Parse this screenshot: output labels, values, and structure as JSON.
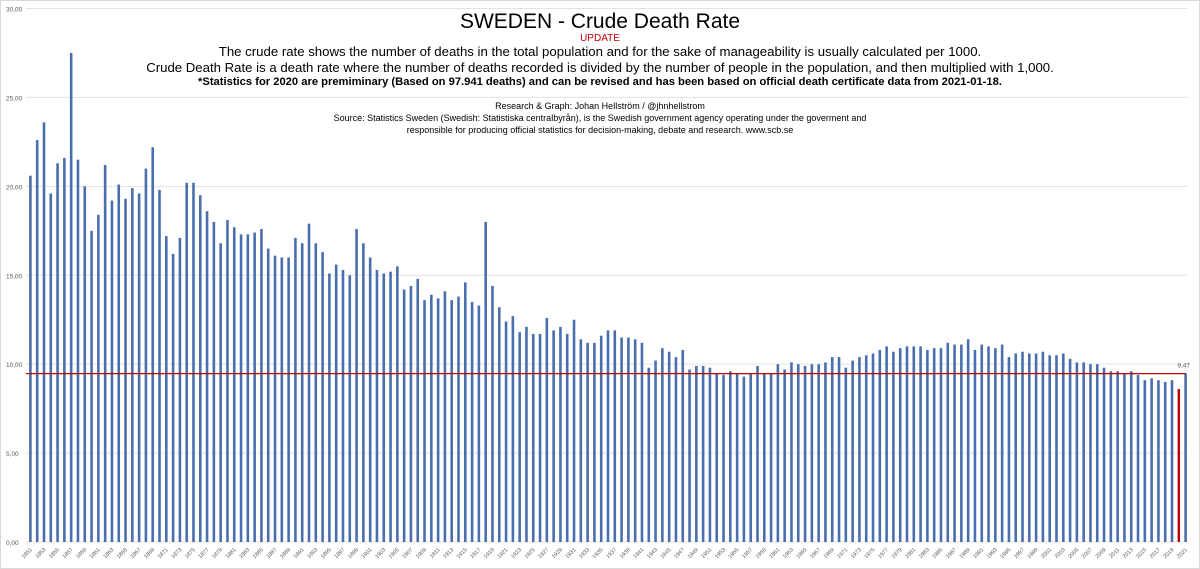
{
  "chart_data": {
    "type": "bar",
    "title": "SWEDEN - Crude Death Rate",
    "subtitle": "UPDATE",
    "description": [
      "The crude rate shows the number of deaths in the total population and for the sake of manageability is usually calculated per 1000.",
      "Crude Death Rate is a death rate where the number of deaths recorded is divided by the number of people in the population, and then multiplied with 1,000.",
      "*Statistics for 2020 are premiminary (Based on 97.941 deaths) and can be revised and has been based on official death certificate data from 2021-01-18."
    ],
    "credit": "Research & Graph: Johan Hellström / @jhnhellstrom",
    "source": [
      "Source: Statistics Sweden (Swedish: Statistiska centralbyrån), is the Swedish government agency operating under the goverment and",
      "responsible for producing official statistics for decision-making, debate and research. www.scb.se"
    ],
    "xlabel": "",
    "ylabel": "",
    "ylim": [
      0,
      30
    ],
    "yticks": [
      "0,00",
      "5,00",
      "10,00",
      "15,00",
      "20,00",
      "25,00",
      "30,00"
    ],
    "grid": true,
    "legend": "none",
    "x_start": 1851,
    "x_label_step": 2,
    "reference_line": {
      "value": 9.47,
      "label": "9,47",
      "color": "#c00000"
    },
    "highlight": {
      "year": 2020,
      "value": 9.47,
      "color": "#c00000"
    },
    "bar_color": "#4a6fae",
    "values": [
      20.6,
      22.6,
      23.6,
      19.6,
      21.3,
      21.6,
      27.5,
      21.5,
      20.0,
      17.5,
      18.4,
      21.2,
      19.2,
      20.1,
      19.3,
      19.9,
      19.6,
      21.0,
      22.2,
      19.8,
      17.2,
      16.2,
      17.1,
      20.2,
      20.2,
      19.5,
      18.6,
      18.0,
      16.8,
      18.1,
      17.7,
      17.3,
      17.3,
      17.4,
      17.6,
      16.5,
      16.1,
      16.0,
      16.0,
      17.1,
      16.8,
      17.9,
      16.8,
      16.3,
      15.1,
      15.6,
      15.3,
      15.0,
      17.6,
      16.8,
      16.0,
      15.3,
      15.1,
      15.2,
      15.5,
      14.2,
      14.4,
      14.8,
      13.6,
      13.9,
      13.7,
      14.1,
      13.6,
      13.8,
      14.6,
      13.5,
      13.3,
      18.0,
      14.4,
      13.2,
      12.4,
      12.7,
      11.8,
      12.1,
      11.7,
      11.7,
      12.6,
      11.9,
      12.1,
      11.7,
      12.5,
      11.4,
      11.2,
      11.2,
      11.6,
      11.9,
      11.9,
      11.5,
      11.5,
      11.4,
      11.2,
      9.8,
      10.2,
      10.9,
      10.7,
      10.4,
      10.8,
      9.7,
      9.9,
      9.9,
      9.8,
      9.5,
      9.4,
      9.6,
      9.5,
      9.3,
      9.5,
      9.9,
      9.5,
      9.5,
      10.0,
      9.7,
      10.1,
      10.0,
      9.9,
      10.0,
      10.0,
      10.1,
      10.4,
      10.4,
      9.8,
      10.2,
      10.4,
      10.5,
      10.6,
      10.8,
      11.0,
      10.7,
      10.9,
      11.0,
      11.0,
      11.0,
      10.8,
      10.9,
      10.9,
      11.2,
      11.1,
      11.1,
      11.4,
      10.8,
      11.1,
      11.0,
      10.9,
      11.1,
      10.4,
      10.6,
      10.7,
      10.6,
      10.6,
      10.7,
      10.5,
      10.5,
      10.6,
      10.3,
      10.1,
      10.1,
      10.0,
      10.0,
      9.8,
      9.6,
      9.6,
      9.5,
      9.6,
      9.4,
      9.1,
      9.2,
      9.1,
      9.0,
      9.1,
      8.6,
      9.47
    ]
  }
}
